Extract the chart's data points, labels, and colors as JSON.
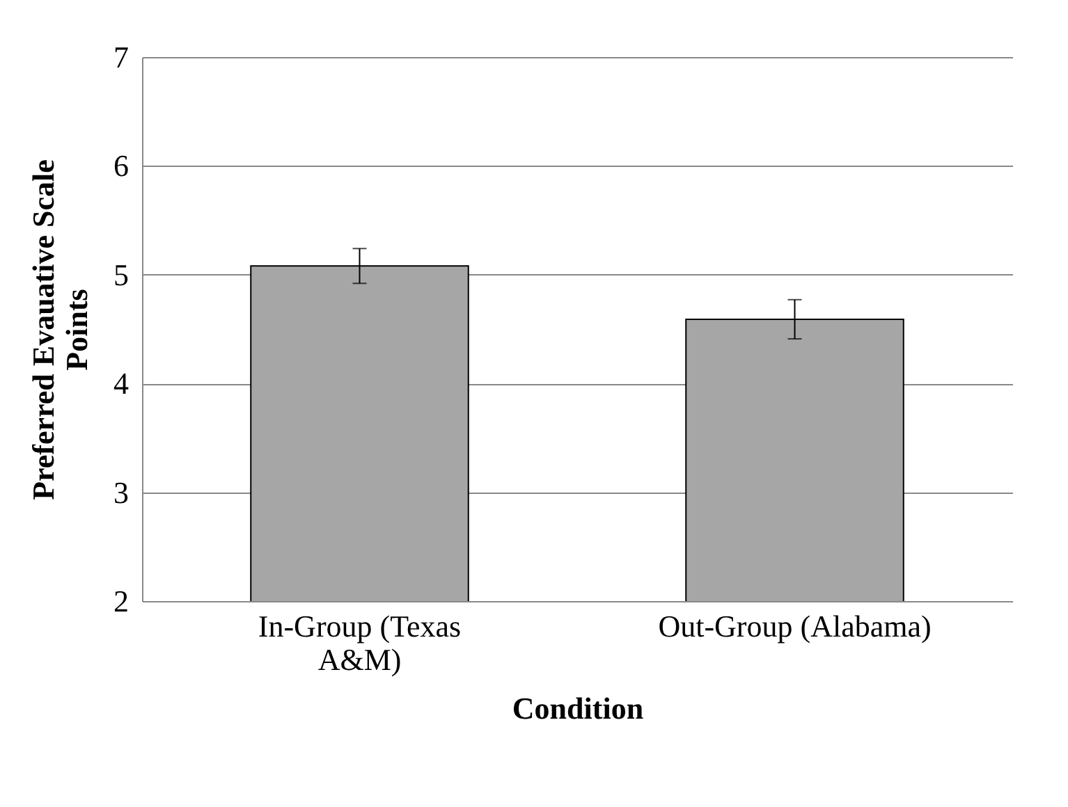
{
  "chart_data": {
    "type": "bar",
    "xlabel": "Condition",
    "ylabel": "Preferred Evauative Scale Points",
    "categories": [
      "In-Group (Texas A&M)",
      "Out-Group (Alabama)"
    ],
    "values": [
      5.08,
      4.59
    ],
    "errors": [
      0.16,
      0.18
    ],
    "color": "#a6a6a6",
    "ylim": [
      2,
      7
    ],
    "yticks": [
      2,
      3,
      4,
      5,
      6,
      7
    ],
    "grid": "y"
  }
}
